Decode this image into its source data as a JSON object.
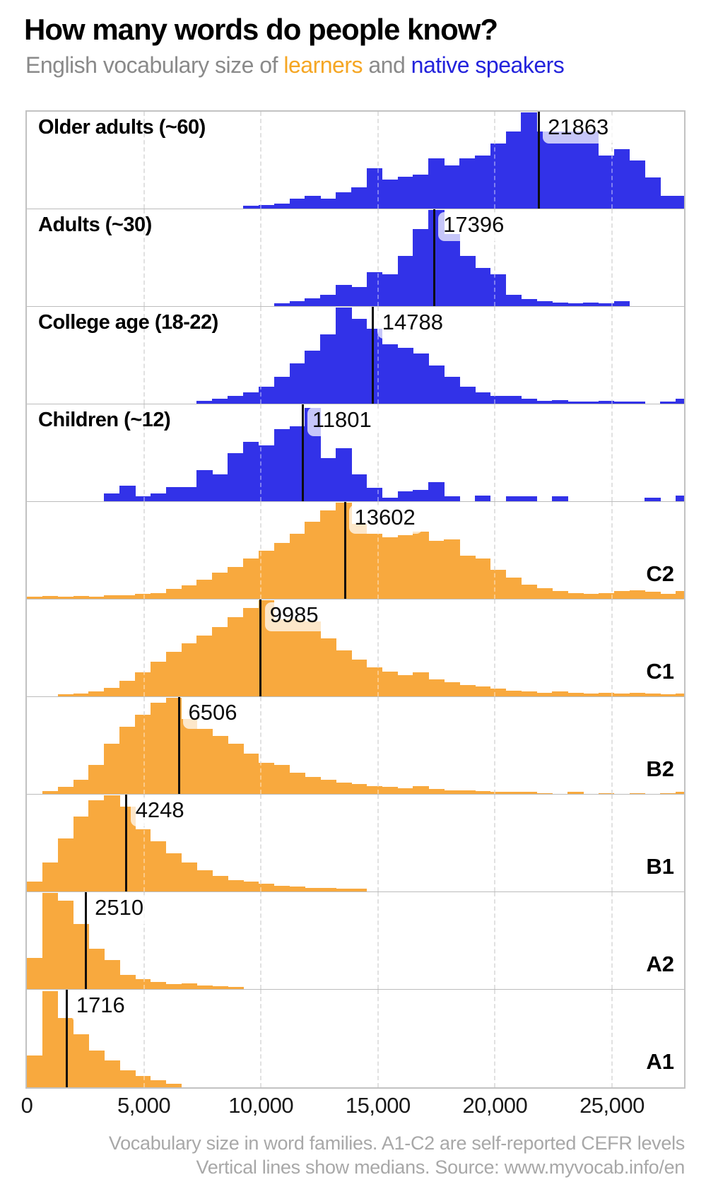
{
  "chart_data": {
    "type": "histogram",
    "title": "How many words do people know?",
    "subtitle_parts": {
      "prefix": "English vocabulary size of ",
      "learners": "learners",
      "and": " and ",
      "native": "native speakers"
    },
    "colors": {
      "native_bar": "#3232E8",
      "learner_bar": "#F8A93E",
      "learner_text": "#F5A623",
      "native_text": "#2323DC",
      "grid": "#CFCFCF",
      "median_line": "#0D0D0D"
    },
    "x_axis": {
      "domain": [
        0,
        28080
      ],
      "bin_width_words": 660,
      "gridlines": [
        5000,
        10000,
        15000,
        20000,
        25000
      ],
      "ticks": [
        {
          "value": 0,
          "label": "0"
        },
        {
          "value": 5000,
          "label": "5,000"
        },
        {
          "value": 10000,
          "label": "10,000"
        },
        {
          "value": 15000,
          "label": "15,000"
        },
        {
          "value": 20000,
          "label": "20,000"
        },
        {
          "value": 25000,
          "label": "25,000"
        }
      ]
    },
    "panels": [
      {
        "key": "older-adults",
        "label": "Older adults (~60)",
        "label_position": "left",
        "group": "native",
        "median": 21863,
        "median_label": "21863",
        "bins": [
          0,
          0,
          0,
          0,
          0,
          0,
          0,
          0,
          0,
          0,
          0,
          0,
          0,
          0,
          0.03,
          0.04,
          0.05,
          0.1,
          0.13,
          0.1,
          0.17,
          0.22,
          0.42,
          0.3,
          0.33,
          0.35,
          0.52,
          0.45,
          0.52,
          0.55,
          0.68,
          0.8,
          1.0,
          0.8,
          0.8,
          0.8,
          0.8,
          0.55,
          0.62,
          0.5,
          0.32,
          0.13,
          0.13
        ]
      },
      {
        "key": "adults-30",
        "label": "Adults (~30)",
        "label_position": "left",
        "group": "native",
        "median": 17396,
        "median_label": "17396",
        "bins": [
          0,
          0,
          0,
          0,
          0,
          0,
          0,
          0,
          0,
          0,
          0,
          0,
          0,
          0,
          0,
          0,
          0.03,
          0.05,
          0.08,
          0.12,
          0.22,
          0.2,
          0.35,
          0.33,
          0.52,
          0.8,
          1.0,
          0.75,
          0.52,
          0.4,
          0.33,
          0.12,
          0.07,
          0.05,
          0.04,
          0.03,
          0.04,
          0.03,
          0.05,
          0,
          0,
          0,
          0
        ]
      },
      {
        "key": "college-age",
        "label": "College age (18-22)",
        "label_position": "left",
        "group": "native",
        "median": 14788,
        "median_label": "14788",
        "bins": [
          0,
          0,
          0,
          0,
          0,
          0,
          0,
          0,
          0,
          0,
          0,
          0.03,
          0.05,
          0.08,
          0.12,
          0.18,
          0.28,
          0.42,
          0.55,
          0.72,
          1.0,
          0.88,
          0.78,
          0.62,
          0.58,
          0.52,
          0.4,
          0.28,
          0.18,
          0.12,
          0.08,
          0.08,
          0.05,
          0.03,
          0.04,
          0.02,
          0.02,
          0.03,
          0.02,
          0.02,
          0,
          0.02,
          0.05
        ]
      },
      {
        "key": "children-12",
        "label": "Children (~12)",
        "label_position": "left",
        "group": "native",
        "median": 11801,
        "median_label": "11801",
        "bins": [
          0,
          0,
          0,
          0,
          0,
          0.08,
          0.16,
          0.05,
          0.08,
          0.15,
          0.15,
          0.32,
          0.28,
          0.5,
          0.62,
          0.58,
          0.75,
          0.78,
          0.97,
          0.45,
          0.55,
          0.28,
          0.14,
          0.04,
          0.1,
          0.12,
          0.2,
          0.05,
          0,
          0.06,
          0,
          0.05,
          0.05,
          0,
          0.05,
          0,
          0,
          0,
          0,
          0,
          0.04,
          0,
          0.06
        ]
      },
      {
        "key": "c2",
        "label": "C2",
        "label_position": "right",
        "group": "learner",
        "median": 13602,
        "median_label": "13602",
        "bins": [
          0.02,
          0.03,
          0.02,
          0.03,
          0.02,
          0.04,
          0.04,
          0.05,
          0.06,
          0.1,
          0.14,
          0.2,
          0.27,
          0.33,
          0.42,
          0.5,
          0.58,
          0.68,
          0.8,
          0.92,
          1.0,
          0.78,
          0.68,
          0.64,
          0.66,
          0.7,
          0.6,
          0.62,
          0.45,
          0.42,
          0.3,
          0.22,
          0.15,
          0.11,
          0.08,
          0.06,
          0.05,
          0.06,
          0.08,
          0.09,
          0.07,
          0.05,
          0.08
        ]
      },
      {
        "key": "c1",
        "label": "C1",
        "label_position": "right",
        "group": "learner",
        "median": 9985,
        "median_label": "9985",
        "bins": [
          0,
          0,
          0.02,
          0.03,
          0.05,
          0.09,
          0.16,
          0.25,
          0.36,
          0.46,
          0.55,
          0.63,
          0.72,
          0.82,
          0.92,
          1.0,
          0.8,
          0.8,
          0.78,
          0.6,
          0.48,
          0.38,
          0.3,
          0.26,
          0.22,
          0.25,
          0.18,
          0.15,
          0.12,
          0.1,
          0.08,
          0.06,
          0.05,
          0.04,
          0.05,
          0.04,
          0.03,
          0.04,
          0.03,
          0.04,
          0.03,
          0.02,
          0.03
        ]
      },
      {
        "key": "b2",
        "label": "B2",
        "label_position": "right",
        "group": "learner",
        "median": 6506,
        "median_label": "6506",
        "bins": [
          0,
          0.03,
          0.07,
          0.15,
          0.3,
          0.52,
          0.7,
          0.82,
          0.95,
          1.0,
          0.78,
          0.68,
          0.6,
          0.52,
          0.42,
          0.32,
          0.3,
          0.22,
          0.18,
          0.15,
          0.12,
          0.1,
          0.08,
          0.07,
          0.06,
          0.08,
          0.05,
          0.04,
          0.04,
          0.03,
          0.02,
          0.02,
          0.02,
          0.01,
          0,
          0.02,
          0,
          0.01,
          0,
          0.01,
          0,
          0.01,
          0.02
        ]
      },
      {
        "key": "b1",
        "label": "B1",
        "label_position": "right",
        "group": "learner",
        "median": 4248,
        "median_label": "4248",
        "bins": [
          0.1,
          0.3,
          0.55,
          0.78,
          0.95,
          1.0,
          0.88,
          0.65,
          0.52,
          0.4,
          0.3,
          0.22,
          0.16,
          0.12,
          0.1,
          0.08,
          0.06,
          0.05,
          0.04,
          0.04,
          0.03,
          0.03,
          0,
          0,
          0,
          0,
          0,
          0,
          0,
          0,
          0,
          0,
          0,
          0,
          0,
          0,
          0,
          0,
          0,
          0,
          0,
          0,
          0
        ]
      },
      {
        "key": "a2",
        "label": "A2",
        "label_position": "right",
        "group": "learner",
        "median": 2510,
        "median_label": "2510",
        "bins": [
          0.32,
          1.0,
          0.92,
          0.68,
          0.42,
          0.3,
          0.15,
          0.1,
          0.07,
          0.05,
          0.06,
          0.04,
          0.03,
          0.02,
          0,
          0,
          0,
          0,
          0,
          0,
          0,
          0,
          0,
          0,
          0,
          0,
          0,
          0,
          0,
          0,
          0,
          0,
          0,
          0,
          0,
          0,
          0,
          0,
          0,
          0,
          0,
          0,
          0
        ]
      },
      {
        "key": "a1",
        "label": "A1",
        "label_position": "right",
        "group": "learner",
        "median": 1716,
        "median_label": "1716",
        "bins": [
          0.33,
          1.0,
          0.72,
          0.55,
          0.38,
          0.28,
          0.18,
          0.12,
          0.07,
          0.04,
          0,
          0,
          0,
          0,
          0,
          0,
          0,
          0,
          0,
          0,
          0,
          0,
          0,
          0,
          0,
          0,
          0,
          0,
          0,
          0,
          0,
          0,
          0,
          0,
          0,
          0,
          0,
          0,
          0,
          0,
          0,
          0,
          0
        ]
      }
    ],
    "footer_lines": [
      "Vocabulary size in word families. A1-C2 are self-reported CEFR levels",
      "Vertical lines show medians. Source: www.myvocab.info/en"
    ]
  }
}
